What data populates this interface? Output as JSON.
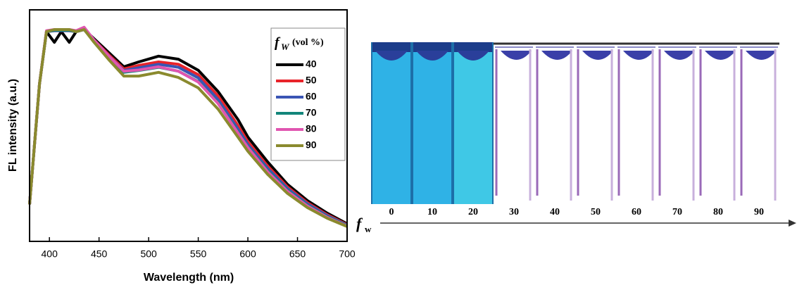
{
  "chart_data": [
    {
      "type": "line",
      "xlabel": "Wavelength (nm)",
      "ylabel": "FL intensity (a.u.)",
      "x": [
        380,
        390,
        397,
        405,
        412,
        420,
        427,
        435,
        445,
        460,
        475,
        490,
        510,
        530,
        550,
        570,
        590,
        600,
        620,
        640,
        660,
        680,
        700
      ],
      "xlim": [
        380,
        700
      ],
      "xticks": [
        400,
        450,
        500,
        550,
        600,
        650,
        700
      ],
      "ylim": [
        0,
        1
      ],
      "legend": "upper right",
      "legend_symbol": "f",
      "legend_symbol_subscript": "W",
      "legend_title": "(vol %)",
      "series": [
        {
          "name": "40",
          "color": "#000000",
          "values": [
            0.16,
            0.68,
            0.906,
            0.86,
            0.906,
            0.86,
            0.906,
            0.915,
            0.875,
            0.815,
            0.754,
            0.775,
            0.8,
            0.787,
            0.739,
            0.647,
            0.526,
            0.45,
            0.343,
            0.246,
            0.176,
            0.122,
            0.076
          ]
        },
        {
          "name": "50",
          "color": "#e8232a",
          "values": [
            0.16,
            0.68,
            0.906,
            0.91,
            0.91,
            0.91,
            0.906,
            0.915,
            0.87,
            0.805,
            0.745,
            0.76,
            0.775,
            0.765,
            0.72,
            0.628,
            0.5,
            0.43,
            0.325,
            0.235,
            0.167,
            0.115,
            0.072
          ]
        },
        {
          "name": "60",
          "color": "#3a55b4",
          "values": [
            0.16,
            0.68,
            0.906,
            0.91,
            0.91,
            0.91,
            0.906,
            0.915,
            0.868,
            0.8,
            0.738,
            0.75,
            0.765,
            0.752,
            0.706,
            0.612,
            0.485,
            0.418,
            0.315,
            0.228,
            0.162,
            0.111,
            0.07
          ]
        },
        {
          "name": "70",
          "color": "#12857a",
          "values": [
            0.16,
            0.68,
            0.906,
            0.912,
            0.912,
            0.912,
            0.906,
            0.915,
            0.865,
            0.795,
            0.73,
            0.738,
            0.752,
            0.735,
            0.69,
            0.598,
            0.472,
            0.408,
            0.305,
            0.22,
            0.156,
            0.107,
            0.068
          ]
        },
        {
          "name": "80",
          "color": "#e055b0",
          "values": [
            0.16,
            0.68,
            0.91,
            0.915,
            0.915,
            0.915,
            0.91,
            0.925,
            0.87,
            0.8,
            0.735,
            0.74,
            0.754,
            0.735,
            0.688,
            0.595,
            0.468,
            0.405,
            0.3,
            0.216,
            0.153,
            0.104,
            0.066
          ]
        },
        {
          "name": "90",
          "color": "#8a8a2e",
          "values": [
            0.16,
            0.68,
            0.906,
            0.915,
            0.915,
            0.915,
            0.906,
            0.915,
            0.86,
            0.784,
            0.714,
            0.714,
            0.73,
            0.708,
            0.663,
            0.571,
            0.45,
            0.389,
            0.289,
            0.207,
            0.146,
            0.1,
            0.064
          ]
        }
      ]
    },
    {
      "type": "photo",
      "categories": [
        "0",
        "10",
        "20",
        "30",
        "40",
        "50",
        "60",
        "70",
        "80",
        "90"
      ],
      "xlabel": "f",
      "xlabel_subscript": "w"
    }
  ]
}
